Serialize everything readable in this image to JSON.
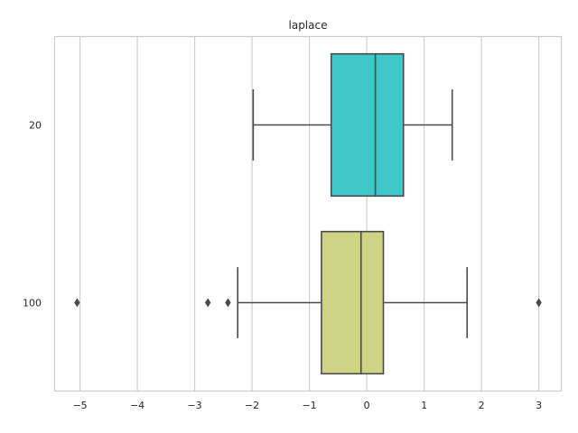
{
  "chart_data": {
    "type": "boxplot",
    "orientation": "horizontal",
    "title": "laplace",
    "xlabel": "",
    "ylabel": "",
    "xlim": [
      -5.45,
      3.4
    ],
    "x_ticks": [
      -5,
      -4,
      -3,
      -2,
      -1,
      0,
      1,
      2,
      3
    ],
    "x_tick_labels": [
      "−5",
      "−4",
      "−3",
      "−2",
      "−1",
      "0",
      "1",
      "2",
      "3"
    ],
    "grid": "vertical",
    "categories": [
      "20",
      "100"
    ],
    "boxes": [
      {
        "label": "20",
        "color": "#3ec8c8",
        "whisker_low": -1.98,
        "q1": -0.62,
        "median": 0.15,
        "q3": 0.64,
        "whisker_high": 1.49,
        "outliers": []
      },
      {
        "label": "100",
        "color": "#cfd485",
        "whisker_low": -2.25,
        "q1": -0.79,
        "median": -0.1,
        "q3": 0.29,
        "whisker_high": 1.75,
        "outliers": [
          -5.05,
          -2.77,
          -2.42,
          3.0
        ]
      }
    ]
  }
}
